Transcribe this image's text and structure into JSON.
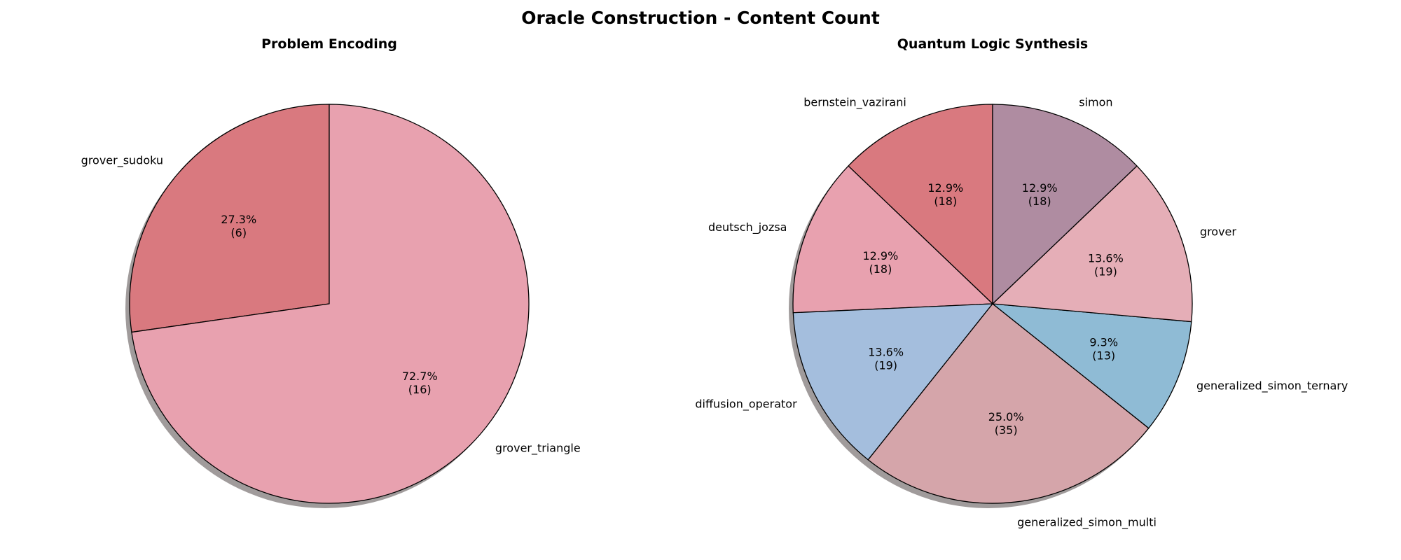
{
  "figure": {
    "title": "Oracle Construction - Content Count"
  },
  "chart_data": [
    {
      "type": "pie",
      "title": "Problem Encoding",
      "start_angle_deg": 90,
      "direction": "counterclockwise",
      "shadow": true,
      "slices": [
        {
          "label": "grover_sudoku",
          "value": 6,
          "percent": "27.3%",
          "count": "(6)",
          "color": "#d9797f"
        },
        {
          "label": "grover_triangle",
          "value": 16,
          "percent": "72.7%",
          "count": "(16)",
          "color": "#e8a1af"
        }
      ]
    },
    {
      "type": "pie",
      "title": "Quantum Logic Synthesis",
      "start_angle_deg": 90,
      "direction": "counterclockwise",
      "shadow": true,
      "slices": [
        {
          "label": "bernstein_vazirani",
          "value": 18,
          "percent": "12.9%",
          "count": "(18)",
          "color": "#d9797f"
        },
        {
          "label": "deutsch_jozsa",
          "value": 18,
          "percent": "12.9%",
          "count": "(18)",
          "color": "#e8a1af"
        },
        {
          "label": "diffusion_operator",
          "value": 19,
          "percent": "13.6%",
          "count": "(19)",
          "color": "#a4bedd"
        },
        {
          "label": "generalized_simon_multi",
          "value": 35,
          "percent": "25.0%",
          "count": "(35)",
          "color": "#d5a5aa"
        },
        {
          "label": "generalized_simon_ternary",
          "value": 13,
          "percent": "9.3%",
          "count": "(13)",
          "color": "#8fbbd5"
        },
        {
          "label": "grover",
          "value": 19,
          "percent": "13.6%",
          "count": "(19)",
          "color": "#e5aeb7"
        },
        {
          "label": "simon",
          "value": 18,
          "percent": "12.9%",
          "count": "(18)",
          "color": "#af8ca1"
        }
      ]
    }
  ]
}
